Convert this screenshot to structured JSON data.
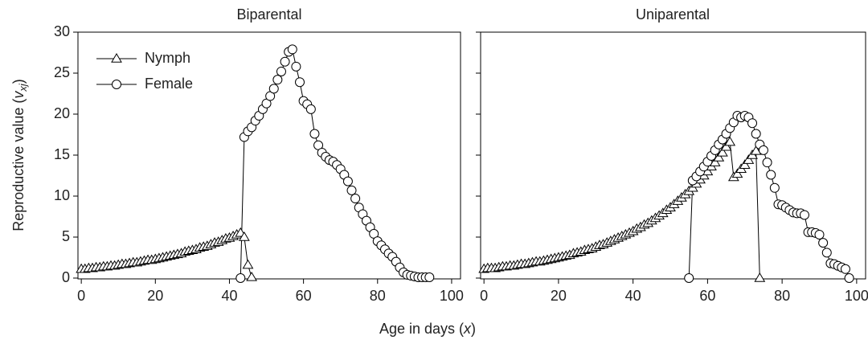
{
  "chart_data": [
    {
      "type": "line",
      "title": "Biparental",
      "ylabel_parts": [
        "Reproductive value (",
        "v",
        "xj",
        ")"
      ],
      "xlabel_parts": [
        "Age in days (",
        "x",
        ")"
      ],
      "xlim": [
        -0.9,
        102.4
      ],
      "ylim": [
        0,
        30
      ],
      "xticks": [
        0,
        20,
        40,
        60,
        80,
        100
      ],
      "yticks": [
        0,
        5,
        10,
        15,
        20,
        25,
        30
      ],
      "show_ytick_labels": true,
      "legend": "upper left",
      "series": [
        {
          "name": "Nymph",
          "marker": "triangle",
          "color": "#000000",
          "x": [
            0,
            1,
            2,
            3,
            4,
            5,
            6,
            7,
            8,
            9,
            10,
            11,
            12,
            13,
            14,
            15,
            16,
            17,
            18,
            19,
            20,
            21,
            22,
            23,
            24,
            25,
            26,
            27,
            28,
            29,
            30,
            31,
            32,
            33,
            34,
            35,
            36,
            37,
            38,
            39,
            40,
            41,
            42,
            43,
            44,
            45,
            46
          ],
          "values": [
            1.1,
            1.1,
            1.2,
            1.2,
            1.3,
            1.3,
            1.4,
            1.4,
            1.5,
            1.5,
            1.6,
            1.7,
            1.7,
            1.8,
            1.9,
            1.9,
            2.0,
            2.1,
            2.2,
            2.2,
            2.3,
            2.4,
            2.5,
            2.6,
            2.7,
            2.8,
            2.9,
            3.0,
            3.2,
            3.3,
            3.4,
            3.5,
            3.7,
            3.8,
            3.9,
            4.1,
            4.3,
            4.4,
            4.6,
            4.8,
            4.9,
            5.1,
            5.3,
            5.5,
            5.0,
            1.6,
            0.1
          ]
        },
        {
          "name": "Female",
          "marker": "circle",
          "color": "#000000",
          "x": [
            43,
            44,
            45,
            46,
            47,
            48,
            49,
            50,
            51,
            52,
            53,
            54,
            55,
            56,
            57,
            58,
            59,
            60,
            61,
            62,
            63,
            64,
            65,
            66,
            67,
            68,
            69,
            70,
            71,
            72,
            73,
            74,
            75,
            76,
            77,
            78,
            79,
            80,
            81,
            82,
            83,
            84,
            85,
            86,
            87,
            88,
            89,
            90,
            91,
            92,
            93,
            94
          ],
          "values": [
            0,
            17.2,
            17.9,
            18.4,
            19.2,
            19.8,
            20.6,
            21.3,
            22.2,
            23.1,
            24.2,
            25.2,
            26.4,
            27.6,
            27.9,
            25.8,
            23.9,
            21.6,
            21.2,
            20.6,
            17.6,
            16.2,
            15.3,
            14.8,
            14.4,
            14.2,
            13.8,
            13.3,
            12.6,
            11.8,
            10.7,
            9.7,
            8.6,
            7.8,
            7.0,
            6.2,
            5.4,
            4.5,
            4.0,
            3.5,
            3.0,
            2.6,
            2.0,
            1.3,
            0.7,
            0.4,
            0.3,
            0.2,
            0.1,
            0.1,
            0.1,
            0.1
          ]
        }
      ]
    },
    {
      "type": "line",
      "title": "Uniparental",
      "xlim": [
        -0.9,
        102.4
      ],
      "ylim": [
        0,
        30
      ],
      "xticks": [
        0,
        20,
        40,
        60,
        80,
        100
      ],
      "yticks": [
        0,
        5,
        10,
        15,
        20,
        25,
        30
      ],
      "show_ytick_labels": false,
      "series": [
        {
          "marker": "triangle",
          "color": "#000000",
          "x": [
            0,
            1,
            2,
            3,
            4,
            5,
            6,
            7,
            8,
            9,
            10,
            11,
            12,
            13,
            14,
            15,
            16,
            17,
            18,
            19,
            20,
            21,
            22,
            23,
            24,
            25,
            26,
            27,
            28,
            29,
            30,
            31,
            32,
            33,
            34,
            35,
            36,
            37,
            38,
            39,
            40,
            41,
            42,
            43,
            44,
            45,
            46,
            47,
            48,
            49,
            50,
            51,
            52,
            53,
            54,
            55,
            56,
            57,
            58,
            59,
            60,
            61,
            62,
            63,
            64,
            65,
            66,
            67,
            68,
            69,
            70,
            71,
            72,
            73,
            74
          ],
          "values": [
            1.1,
            1.2,
            1.2,
            1.2,
            1.3,
            1.4,
            1.4,
            1.5,
            1.5,
            1.6,
            1.7,
            1.7,
            1.8,
            1.9,
            2.0,
            2.0,
            2.1,
            2.2,
            2.3,
            2.4,
            2.5,
            2.6,
            2.7,
            2.8,
            3.0,
            3.1,
            3.2,
            3.4,
            3.5,
            3.6,
            3.8,
            4.0,
            4.1,
            4.3,
            4.5,
            4.7,
            4.9,
            5.1,
            5.3,
            5.5,
            5.7,
            6.0,
            6.2,
            6.5,
            6.7,
            7.0,
            7.3,
            7.6,
            7.9,
            8.3,
            8.6,
            9.0,
            9.4,
            9.8,
            10.2,
            10.6,
            11.0,
            11.5,
            12.0,
            12.5,
            13.0,
            13.6,
            14.1,
            14.7,
            15.3,
            16.0,
            16.6,
            12.3,
            12.7,
            13.3,
            13.8,
            14.4,
            15.0,
            15.5,
            0
          ]
        },
        {
          "marker": "circle",
          "color": "#000000",
          "x": [
            55,
            56,
            57,
            58,
            59,
            60,
            61,
            62,
            63,
            64,
            65,
            66,
            67,
            68,
            69,
            70,
            71,
            72,
            73,
            74,
            75,
            76,
            77,
            78,
            79,
            80,
            81,
            82,
            83,
            84,
            85,
            86,
            87,
            88,
            89,
            90,
            91,
            92,
            93,
            94,
            95,
            96,
            97,
            98
          ],
          "values": [
            0,
            11.9,
            12.4,
            13.0,
            13.6,
            14.2,
            14.9,
            15.6,
            16.3,
            16.9,
            17.6,
            18.3,
            19.0,
            19.8,
            19.6,
            19.8,
            19.6,
            18.9,
            17.6,
            16.3,
            15.6,
            14.1,
            12.6,
            11.0,
            9.0,
            8.9,
            8.6,
            8.3,
            8.0,
            7.9,
            7.9,
            7.7,
            5.6,
            5.6,
            5.5,
            5.3,
            4.3,
            3.1,
            1.8,
            1.7,
            1.5,
            1.3,
            1.1,
            0
          ]
        }
      ]
    }
  ]
}
